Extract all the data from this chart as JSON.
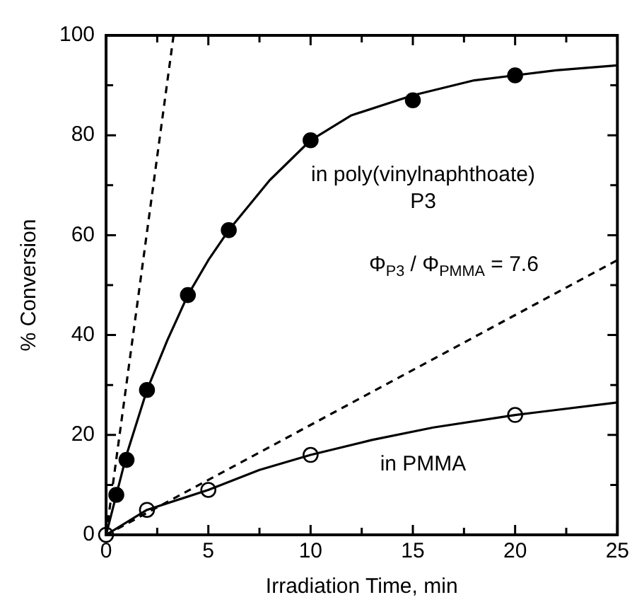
{
  "chart_data": {
    "type": "scatter",
    "xlabel": "Irradiation Time, min",
    "ylabel": "% Conversion",
    "series": [
      {
        "type": "line",
        "color": "#000000",
        "line_style": "dashed",
        "marker": "none",
        "x": [
          0,
          3.3
        ],
        "values": [
          0,
          100
        ]
      },
      {
        "type": "line",
        "color": "#000000",
        "line_style": "dashed",
        "marker": "none",
        "x": [
          0,
          25
        ],
        "values": [
          0,
          55
        ]
      },
      {
        "type": "line",
        "color": "#000000",
        "line_style": "solid",
        "marker": "none",
        "x": [
          0,
          1,
          2,
          3,
          4,
          5,
          6,
          8,
          10,
          12,
          15,
          18,
          20,
          22,
          25
        ],
        "values": [
          0,
          16,
          29,
          39,
          48,
          55,
          61,
          71,
          79,
          84,
          88,
          91,
          92,
          93,
          94
        ]
      },
      {
        "type": "line",
        "color": "#000000",
        "line_style": "solid",
        "marker": "none",
        "x": [
          0,
          2,
          5,
          7.5,
          10,
          13,
          16,
          20,
          25
        ],
        "values": [
          0,
          5,
          9,
          13,
          16,
          19,
          21.5,
          24,
          26.5
        ]
      },
      {
        "color": "#000000",
        "marker": "circle",
        "x": [
          0.5,
          1,
          2,
          4,
          6,
          10,
          15,
          20
        ],
        "values": [
          8,
          15,
          29,
          48,
          61,
          79,
          87,
          92
        ]
      },
      {
        "color": "#ffffff",
        "marker": "circle",
        "x": [
          0,
          2,
          5,
          10,
          20
        ],
        "values": [
          0,
          5,
          9,
          16,
          24
        ]
      }
    ],
    "xlim": [
      0,
      25
    ],
    "ylim": [
      0,
      100
    ],
    "xticks": [
      0,
      {
        "value": 2.5,
        "label": null
      },
      5,
      {
        "value": 7.5,
        "label": null
      },
      10,
      {
        "value": 12.5,
        "label": null
      },
      15,
      {
        "value": 17.5,
        "label": null
      },
      20,
      {
        "value": 22.5,
        "label": null
      },
      25
    ],
    "yticks": [
      0,
      {
        "value": 10,
        "label": null
      },
      20,
      {
        "value": 30,
        "label": null
      },
      40,
      {
        "value": 50,
        "label": null
      },
      60,
      {
        "value": 70,
        "label": null
      },
      80,
      {
        "value": 90,
        "label": null
      },
      100
    ],
    "grid": false,
    "legend": false,
    "annotations": [
      "in poly(vinylnaphthoate)\nP3",
      "Φ$_{P3}$ / Φ$_{PMMA}$ = 7.6",
      "in PMMA"
    ]
  }
}
